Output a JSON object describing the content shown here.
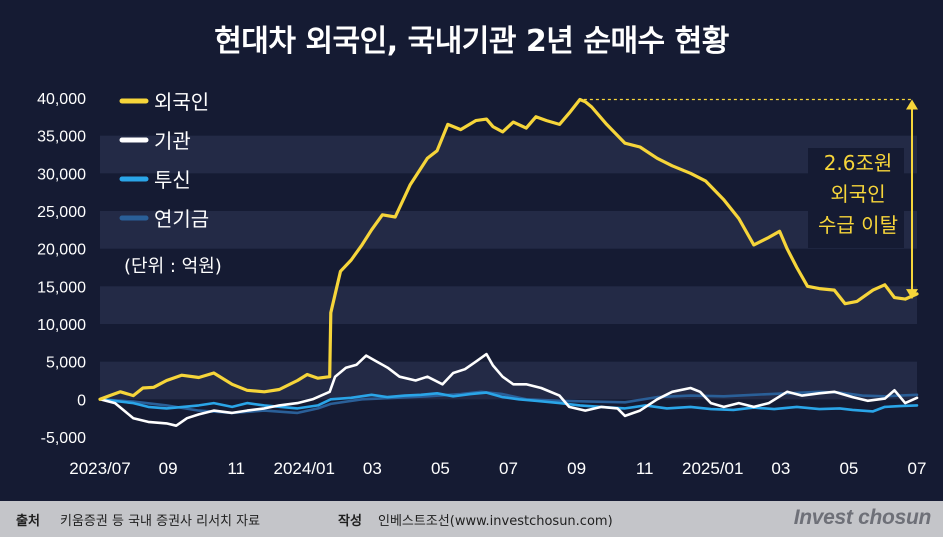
{
  "title": "현대차 외국인, 국내기관 2년 순매수 현황",
  "unit_note": "(단위 : 억원)",
  "annotation": [
    "2.6조원",
    "외국인",
    "수급 이탈"
  ],
  "footer": {
    "source_label": "출처",
    "source_text": "키움증권 등 국내 증권사 리서치 자료",
    "author_label": "작성",
    "author_text": "인베스트조선(www.investchosun.com)",
    "brand": "Invest chosun"
  },
  "colors": {
    "background": "#151b33",
    "band": "#232a46",
    "foreigner": "#f6d53a",
    "institution": "#ffffff",
    "investment_trust": "#2aa5e8",
    "pension": "#2a5f98"
  },
  "chart_data": {
    "type": "line",
    "title": "현대차 외국인, 국내기관 2년 순매수 현황",
    "unit": "억원",
    "x_tick_labels": [
      "2023/07",
      "09",
      "11",
      "2024/01",
      "03",
      "05",
      "07",
      "09",
      "11",
      "2025/01",
      "03",
      "05",
      "07"
    ],
    "x_range": [
      "2023-07-01",
      "2025-07-31"
    ],
    "y_range": [
      -5000,
      40000
    ],
    "y_ticks": [
      "-5,000",
      "0",
      "5,000",
      "10,000",
      "15,000",
      "20,000",
      "25,000",
      "30,000",
      "35,000",
      "40,000"
    ],
    "y_tick_values": [
      -5000,
      0,
      5000,
      10000,
      15000,
      20000,
      25000,
      30000,
      35000,
      40000
    ],
    "grid": "horizontal bands",
    "legend_position": "top-left",
    "series": [
      {
        "name": "외국인",
        "color": "#f6d53a",
        "points": [
          [
            "2023-07-01",
            0
          ],
          [
            "2023-07-10",
            500
          ],
          [
            "2023-07-20",
            1000
          ],
          [
            "2023-08-01",
            500
          ],
          [
            "2023-08-10",
            1500
          ],
          [
            "2023-08-20",
            1600
          ],
          [
            "2023-09-01",
            2500
          ],
          [
            "2023-09-15",
            3200
          ],
          [
            "2023-10-01",
            2900
          ],
          [
            "2023-10-15",
            3500
          ],
          [
            "2023-11-01",
            2000
          ],
          [
            "2023-11-15",
            1200
          ],
          [
            "2023-12-01",
            1000
          ],
          [
            "2023-12-15",
            1300
          ],
          [
            "2024-01-01",
            2500
          ],
          [
            "2024-01-10",
            3300
          ],
          [
            "2024-01-20",
            2800
          ],
          [
            "2024-01-31",
            3000
          ],
          [
            "2024-02-01",
            11500
          ],
          [
            "2024-02-10",
            17000
          ],
          [
            "2024-02-20",
            18500
          ],
          [
            "2024-03-01",
            20500
          ],
          [
            "2024-03-10",
            22500
          ],
          [
            "2024-03-20",
            24500
          ],
          [
            "2024-04-01",
            24200
          ],
          [
            "2024-04-15",
            28500
          ],
          [
            "2024-05-01",
            32000
          ],
          [
            "2024-05-10",
            33000
          ],
          [
            "2024-05-20",
            36500
          ],
          [
            "2024-06-01",
            35800
          ],
          [
            "2024-06-15",
            37000
          ],
          [
            "2024-06-25",
            37200
          ],
          [
            "2024-07-01",
            36200
          ],
          [
            "2024-07-10",
            35500
          ],
          [
            "2024-07-20",
            36800
          ],
          [
            "2024-08-01",
            36000
          ],
          [
            "2024-08-10",
            37500
          ],
          [
            "2024-08-20",
            37000
          ],
          [
            "2024-09-01",
            36500
          ],
          [
            "2024-09-10",
            38000
          ],
          [
            "2024-09-20",
            39800
          ],
          [
            "2024-09-25",
            39500
          ],
          [
            "2024-10-01",
            38800
          ],
          [
            "2024-10-15",
            36500
          ],
          [
            "2024-11-01",
            34000
          ],
          [
            "2024-11-15",
            33500
          ],
          [
            "2024-12-01",
            32000
          ],
          [
            "2024-12-15",
            31000
          ],
          [
            "2025-01-01",
            30000
          ],
          [
            "2025-01-15",
            29000
          ],
          [
            "2025-02-01",
            26500
          ],
          [
            "2025-02-15",
            24000
          ],
          [
            "2025-03-01",
            20500
          ],
          [
            "2025-03-15",
            21500
          ],
          [
            "2025-03-25",
            22300
          ],
          [
            "2025-04-01",
            20000
          ],
          [
            "2025-04-10",
            17500
          ],
          [
            "2025-04-20",
            15000
          ],
          [
            "2025-05-01",
            14700
          ],
          [
            "2025-05-15",
            14500
          ],
          [
            "2025-05-25",
            12700
          ],
          [
            "2025-06-05",
            13000
          ],
          [
            "2025-06-20",
            14500
          ],
          [
            "2025-07-01",
            15200
          ],
          [
            "2025-07-10",
            13500
          ],
          [
            "2025-07-20",
            13300
          ],
          [
            "2025-07-31",
            14000
          ]
        ]
      },
      {
        "name": "기관",
        "color": "#ffffff",
        "points": [
          [
            "2023-07-01",
            0
          ],
          [
            "2023-07-15",
            -500
          ],
          [
            "2023-08-01",
            -2500
          ],
          [
            "2023-08-15",
            -3000
          ],
          [
            "2023-09-01",
            -3200
          ],
          [
            "2023-09-10",
            -3500
          ],
          [
            "2023-09-20",
            -2500
          ],
          [
            "2023-10-01",
            -2000
          ],
          [
            "2023-10-15",
            -1500
          ],
          [
            "2023-11-01",
            -1800
          ],
          [
            "2023-11-15",
            -1500
          ],
          [
            "2023-12-01",
            -1200
          ],
          [
            "2023-12-15",
            -800
          ],
          [
            "2024-01-01",
            -500
          ],
          [
            "2024-01-15",
            0
          ],
          [
            "2024-01-31",
            1000
          ],
          [
            "2024-02-05",
            3000
          ],
          [
            "2024-02-15",
            4200
          ],
          [
            "2024-02-25",
            4600
          ],
          [
            "2024-03-05",
            5800
          ],
          [
            "2024-03-15",
            5000
          ],
          [
            "2024-03-25",
            4200
          ],
          [
            "2024-04-05",
            3000
          ],
          [
            "2024-04-20",
            2500
          ],
          [
            "2024-05-01",
            3000
          ],
          [
            "2024-05-15",
            2000
          ],
          [
            "2024-05-25",
            3500
          ],
          [
            "2024-06-05",
            4000
          ],
          [
            "2024-06-15",
            5000
          ],
          [
            "2024-06-25",
            6000
          ],
          [
            "2024-07-01",
            4500
          ],
          [
            "2024-07-10",
            3000
          ],
          [
            "2024-07-20",
            2000
          ],
          [
            "2024-08-01",
            2000
          ],
          [
            "2024-08-15",
            1500
          ],
          [
            "2024-09-01",
            500
          ],
          [
            "2024-09-10",
            -1000
          ],
          [
            "2024-09-25",
            -1500
          ],
          [
            "2024-10-10",
            -1000
          ],
          [
            "2024-10-25",
            -1200
          ],
          [
            "2024-11-01",
            -2200
          ],
          [
            "2024-11-15",
            -1500
          ],
          [
            "2024-12-01",
            0
          ],
          [
            "2024-12-15",
            1000
          ],
          [
            "2025-01-01",
            1500
          ],
          [
            "2025-01-10",
            1000
          ],
          [
            "2025-01-20",
            -500
          ],
          [
            "2025-02-01",
            -1000
          ],
          [
            "2025-02-15",
            -500
          ],
          [
            "2025-03-01",
            -1000
          ],
          [
            "2025-03-15",
            -500
          ],
          [
            "2025-04-01",
            1000
          ],
          [
            "2025-04-15",
            500
          ],
          [
            "2025-05-01",
            800
          ],
          [
            "2025-05-15",
            1000
          ],
          [
            "2025-06-01",
            300
          ],
          [
            "2025-06-15",
            -200
          ],
          [
            "2025-07-01",
            100
          ],
          [
            "2025-07-10",
            1200
          ],
          [
            "2025-07-20",
            -500
          ],
          [
            "2025-07-31",
            200
          ]
        ]
      },
      {
        "name": "투신",
        "color": "#2aa5e8",
        "points": [
          [
            "2023-07-01",
            0
          ],
          [
            "2023-08-01",
            -500
          ],
          [
            "2023-08-15",
            -1000
          ],
          [
            "2023-09-01",
            -1200
          ],
          [
            "2023-10-01",
            -800
          ],
          [
            "2023-10-15",
            -500
          ],
          [
            "2023-11-01",
            -1000
          ],
          [
            "2023-11-15",
            -500
          ],
          [
            "2023-12-01",
            -800
          ],
          [
            "2024-01-01",
            -1200
          ],
          [
            "2024-01-20",
            -800
          ],
          [
            "2024-02-01",
            0
          ],
          [
            "2024-02-20",
            200
          ],
          [
            "2024-03-10",
            600
          ],
          [
            "2024-03-25",
            300
          ],
          [
            "2024-04-10",
            500
          ],
          [
            "2024-04-25",
            600
          ],
          [
            "2024-05-10",
            800
          ],
          [
            "2024-05-25",
            400
          ],
          [
            "2024-06-10",
            700
          ],
          [
            "2024-06-25",
            900
          ],
          [
            "2024-07-10",
            300
          ],
          [
            "2024-07-25",
            0
          ],
          [
            "2024-08-10",
            -200
          ],
          [
            "2024-09-01",
            -500
          ],
          [
            "2024-09-20",
            -800
          ],
          [
            "2024-10-10",
            -1000
          ],
          [
            "2024-11-01",
            -1200
          ],
          [
            "2024-11-20",
            -800
          ],
          [
            "2024-12-10",
            -1200
          ],
          [
            "2025-01-01",
            -1000
          ],
          [
            "2025-01-20",
            -1300
          ],
          [
            "2025-02-10",
            -1400
          ],
          [
            "2025-03-01",
            -1100
          ],
          [
            "2025-03-20",
            -1300
          ],
          [
            "2025-04-10",
            -1000
          ],
          [
            "2025-05-01",
            -1300
          ],
          [
            "2025-05-20",
            -1200
          ],
          [
            "2025-06-01",
            -1400
          ],
          [
            "2025-06-20",
            -1600
          ],
          [
            "2025-07-01",
            -1000
          ],
          [
            "2025-07-15",
            -900
          ],
          [
            "2025-07-31",
            -800
          ]
        ]
      },
      {
        "name": "연기금",
        "color": "#2a5f98",
        "points": [
          [
            "2023-07-01",
            0
          ],
          [
            "2023-08-01",
            -300
          ],
          [
            "2023-09-01",
            -800
          ],
          [
            "2023-10-01",
            -1500
          ],
          [
            "2023-11-01",
            -1800
          ],
          [
            "2023-12-01",
            -1500
          ],
          [
            "2024-01-01",
            -1800
          ],
          [
            "2024-01-20",
            -1200
          ],
          [
            "2024-02-01",
            -600
          ],
          [
            "2024-03-01",
            0
          ],
          [
            "2024-04-01",
            200
          ],
          [
            "2024-05-01",
            400
          ],
          [
            "2024-06-01",
            700
          ],
          [
            "2024-06-20",
            1000
          ],
          [
            "2024-07-10",
            700
          ],
          [
            "2024-08-01",
            0
          ],
          [
            "2024-09-01",
            -200
          ],
          [
            "2024-10-01",
            -300
          ],
          [
            "2024-11-01",
            -400
          ],
          [
            "2024-12-01",
            300
          ],
          [
            "2025-01-01",
            500
          ],
          [
            "2025-02-01",
            400
          ],
          [
            "2025-03-01",
            600
          ],
          [
            "2025-04-01",
            800
          ],
          [
            "2025-05-01",
            1000
          ],
          [
            "2025-05-20",
            900
          ],
          [
            "2025-06-10",
            500
          ],
          [
            "2025-07-01",
            400
          ],
          [
            "2025-07-31",
            600
          ]
        ]
      }
    ],
    "annotations": [
      {
        "text": [
          "2.6조원",
          "외국인",
          "수급 이탈"
        ],
        "from": 39800,
        "to": 13300
      }
    ]
  }
}
